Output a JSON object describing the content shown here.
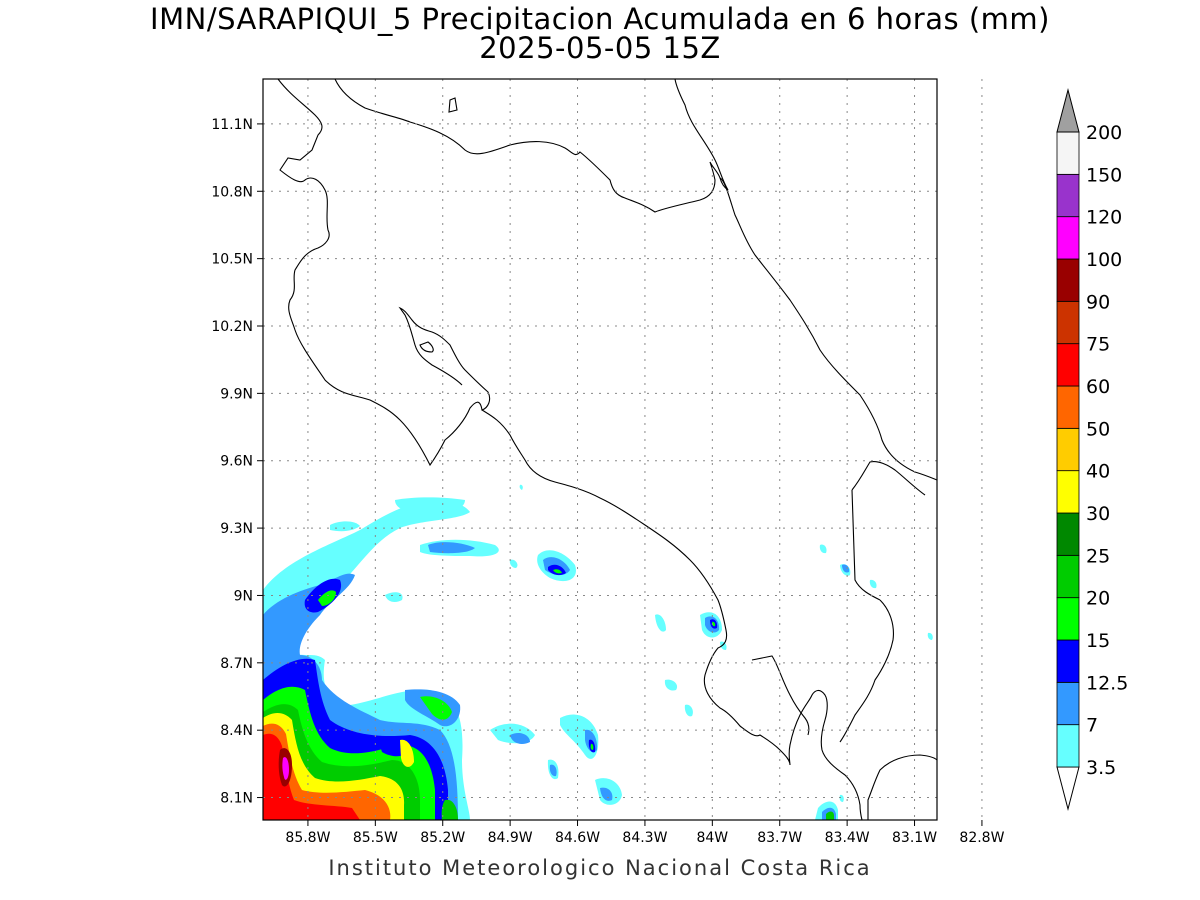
{
  "header": {
    "title": "IMN/SARAPIQUI_5 Precipitacion Acumulada en 6 horas (mm)",
    "subtitle": "2025-05-05 15Z"
  },
  "footer": {
    "credit": "Instituto Meteorologico Nacional Costa Rica"
  },
  "map": {
    "lat_range": [
      8.0,
      11.3
    ],
    "lon_range": [
      -86.0,
      -83.0
    ],
    "lat_ticks": [
      "11.1N",
      "10.8N",
      "10.5N",
      "10.2N",
      "9.9N",
      "9.6N",
      "9.3N",
      "9N",
      "8.7N",
      "8.4N",
      "8.1N"
    ],
    "lon_ticks": [
      "85.8W",
      "85.5W",
      "85.2W",
      "84.9W",
      "84.6W",
      "84.3W",
      "84W",
      "83.7W",
      "83.4W",
      "83.1W",
      "82.8W"
    ],
    "grid": "dotted"
  },
  "legend": {
    "labels": [
      "3.5",
      "7",
      "12.5",
      "15",
      "20",
      "25",
      "30",
      "40",
      "50",
      "60",
      "75",
      "90",
      "100",
      "120",
      "150",
      "200"
    ],
    "colors": [
      "#66ffff",
      "#3399ff",
      "#0000ff",
      "#00ff00",
      "#00cc00",
      "#008800",
      "#ffff00",
      "#ffcc00",
      "#ff6600",
      "#ff0000",
      "#cc3300",
      "#990000",
      "#ff00ff",
      "#9933cc",
      "#f5f5f5",
      "#a0a0a0"
    ]
  }
}
